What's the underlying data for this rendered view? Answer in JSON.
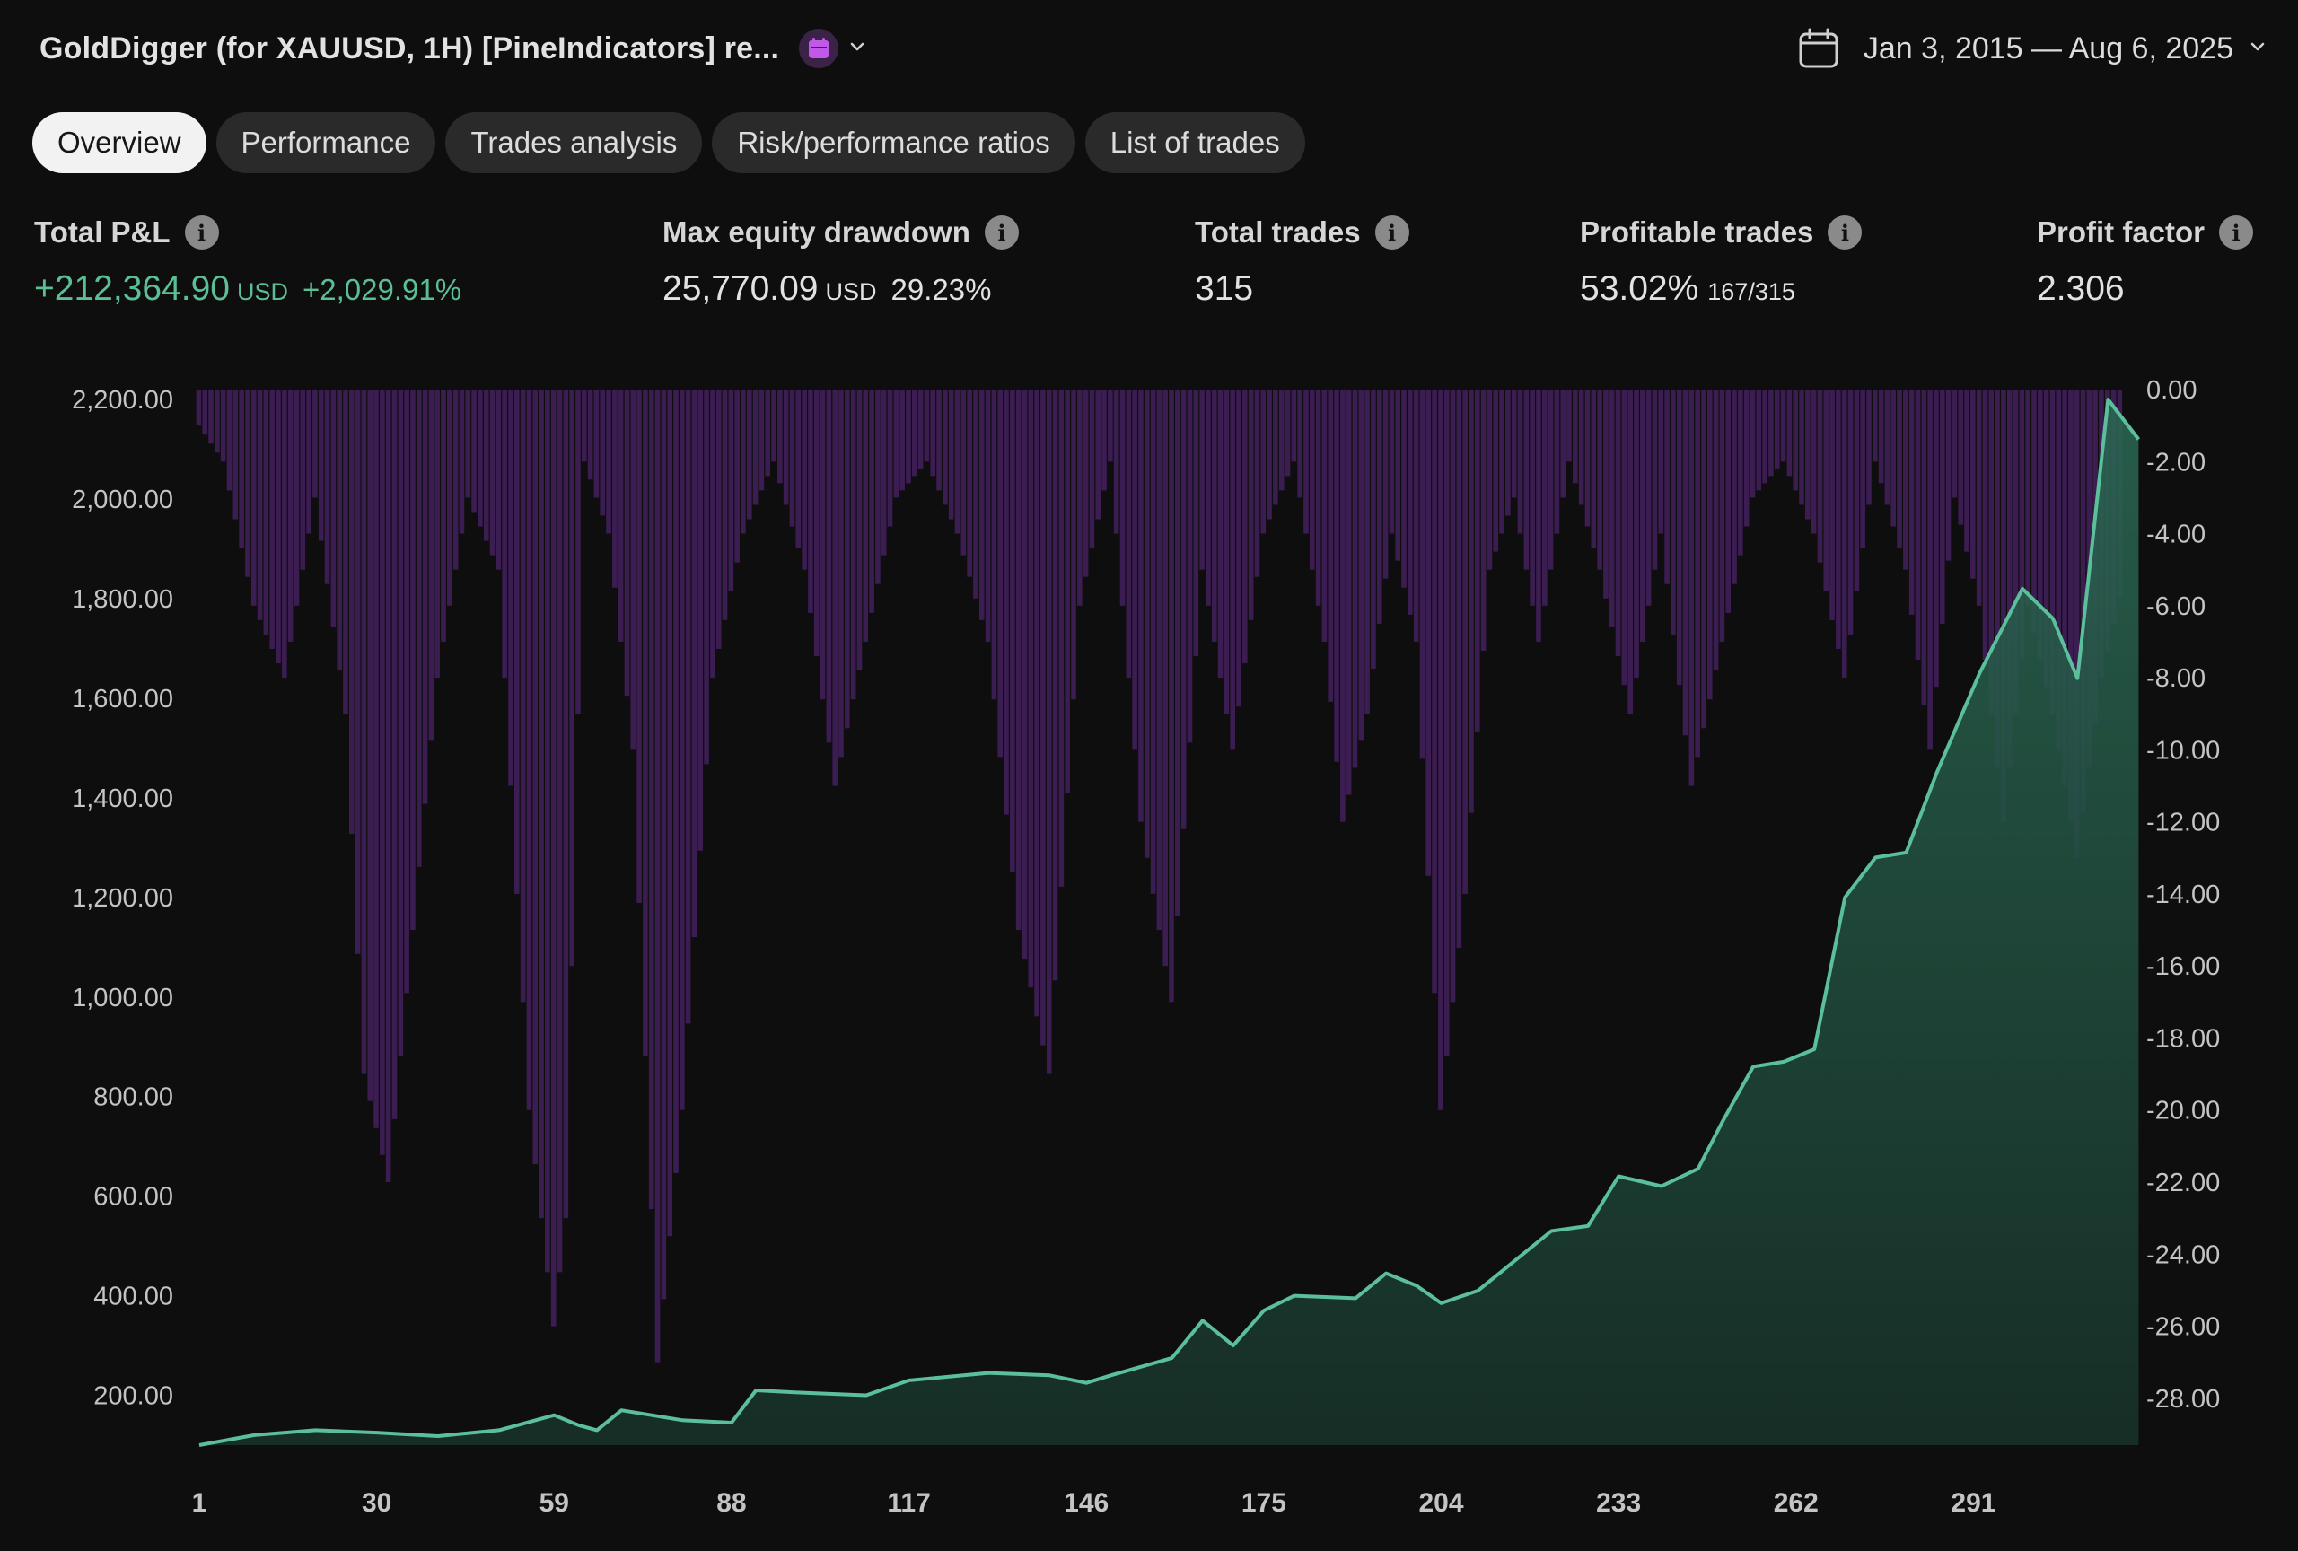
{
  "header": {
    "title": "GoldDigger (for XAUUSD, 1H) [PineIndicators] re...",
    "date_range": "Jan 3, 2015 — Aug 6, 2025"
  },
  "tabs": [
    {
      "label": "Overview",
      "active": true
    },
    {
      "label": "Performance"
    },
    {
      "label": "Trades analysis"
    },
    {
      "label": "Risk/performance ratios"
    },
    {
      "label": "List of trades"
    }
  ],
  "stats": {
    "total_pnl": {
      "label": "Total P&L",
      "value": "+212,364.90",
      "unit": "USD",
      "secondary": "+2,029.91%"
    },
    "max_drawdown": {
      "label": "Max equity drawdown",
      "value": "25,770.09",
      "unit": "USD",
      "secondary": "29.23%"
    },
    "total_trades": {
      "label": "Total trades",
      "value": "315"
    },
    "profitable_trades": {
      "label": "Profitable trades",
      "value": "53.02%",
      "secondary": "167/315"
    },
    "profit_factor": {
      "label": "Profit factor",
      "value": "2.306"
    }
  },
  "colors": {
    "accent_green": "#5bbf95",
    "drawdown_purple": "#3b1d52",
    "background": "#0e0e0e"
  },
  "chart_data": {
    "type": "area",
    "left_axis_ticks": [
      "2,200.00",
      "2,000.00",
      "1,800.00",
      "1,600.00",
      "1,400.00",
      "1,200.00",
      "1,000.00",
      "800.00",
      "600.00",
      "400.00",
      "200.00"
    ],
    "left_axis_values": [
      2200,
      2000,
      1800,
      1600,
      1400,
      1200,
      1000,
      800,
      600,
      400,
      200
    ],
    "right_axis_ticks": [
      "0.00",
      "-2.00",
      "-4.00",
      "-6.00",
      "-8.00",
      "-10.00",
      "-12.00",
      "-14.00",
      "-16.00",
      "-18.00",
      "-20.00",
      "-22.00",
      "-24.00",
      "-26.00",
      "-28.00"
    ],
    "right_axis_values": [
      0,
      -2,
      -4,
      -6,
      -8,
      -10,
      -12,
      -14,
      -16,
      -18,
      -20,
      -22,
      -24,
      -26,
      -28
    ],
    "x_ticks": [
      "1",
      "30",
      "59",
      "88",
      "117",
      "146",
      "175",
      "204",
      "233",
      "262",
      "291"
    ],
    "x_tick_values": [
      1,
      30,
      59,
      88,
      117,
      146,
      175,
      204,
      233,
      262,
      291
    ],
    "x_range": [
      1,
      315
    ],
    "y_range": [
      100,
      2220
    ],
    "drawdown_range": [
      -29.3,
      0
    ],
    "series": [
      {
        "kind": "equity",
        "points": [
          [
            1,
            100
          ],
          [
            10,
            120
          ],
          [
            20,
            130
          ],
          [
            30,
            125
          ],
          [
            40,
            118
          ],
          [
            50,
            130
          ],
          [
            59,
            160
          ],
          [
            63,
            140
          ],
          [
            66,
            130
          ],
          [
            70,
            170
          ],
          [
            80,
            150
          ],
          [
            88,
            145
          ],
          [
            92,
            210
          ],
          [
            100,
            205
          ],
          [
            110,
            200
          ],
          [
            117,
            230
          ],
          [
            130,
            245
          ],
          [
            140,
            240
          ],
          [
            146,
            225
          ],
          [
            150,
            240
          ],
          [
            160,
            275
          ],
          [
            165,
            350
          ],
          [
            170,
            300
          ],
          [
            175,
            370
          ],
          [
            180,
            400
          ],
          [
            190,
            395
          ],
          [
            195,
            445
          ],
          [
            200,
            420
          ],
          [
            204,
            385
          ],
          [
            210,
            410
          ],
          [
            215,
            460
          ],
          [
            222,
            530
          ],
          [
            228,
            540
          ],
          [
            233,
            640
          ],
          [
            240,
            620
          ],
          [
            246,
            655
          ],
          [
            250,
            750
          ],
          [
            255,
            860
          ],
          [
            260,
            870
          ],
          [
            265,
            895
          ],
          [
            270,
            1200
          ],
          [
            275,
            1280
          ],
          [
            280,
            1290
          ],
          [
            285,
            1450
          ],
          [
            292,
            1650
          ],
          [
            299,
            1820
          ],
          [
            304,
            1760
          ],
          [
            308,
            1640
          ],
          [
            313,
            2200
          ],
          [
            318,
            2120
          ]
        ]
      },
      {
        "kind": "drawdown_pct",
        "points": [
          [
            1,
            -1
          ],
          [
            5,
            -2
          ],
          [
            10,
            -6
          ],
          [
            15,
            -8
          ],
          [
            20,
            -3
          ],
          [
            25,
            -9
          ],
          [
            28,
            -19
          ],
          [
            32,
            -22
          ],
          [
            36,
            -15
          ],
          [
            40,
            -8
          ],
          [
            45,
            -3
          ],
          [
            50,
            -5
          ],
          [
            55,
            -20
          ],
          [
            59,
            -26
          ],
          [
            61,
            -23
          ],
          [
            64,
            -2
          ],
          [
            68,
            -4
          ],
          [
            72,
            -10
          ],
          [
            76,
            -27
          ],
          [
            80,
            -20
          ],
          [
            85,
            -8
          ],
          [
            90,
            -4
          ],
          [
            95,
            -2
          ],
          [
            100,
            -5
          ],
          [
            105,
            -11
          ],
          [
            110,
            -7
          ],
          [
            115,
            -3
          ],
          [
            120,
            -2
          ],
          [
            125,
            -4
          ],
          [
            130,
            -7
          ],
          [
            135,
            -15
          ],
          [
            140,
            -19
          ],
          [
            145,
            -6
          ],
          [
            150,
            -2
          ],
          [
            155,
            -12
          ],
          [
            160,
            -17
          ],
          [
            165,
            -5
          ],
          [
            170,
            -10
          ],
          [
            175,
            -4
          ],
          [
            180,
            -2
          ],
          [
            185,
            -7
          ],
          [
            188,
            -12
          ],
          [
            192,
            -9
          ],
          [
            196,
            -4
          ],
          [
            200,
            -7
          ],
          [
            204,
            -20
          ],
          [
            208,
            -14
          ],
          [
            212,
            -5
          ],
          [
            216,
            -3
          ],
          [
            220,
            -7
          ],
          [
            225,
            -2
          ],
          [
            230,
            -5
          ],
          [
            235,
            -9
          ],
          [
            240,
            -4
          ],
          [
            245,
            -11
          ],
          [
            250,
            -7
          ],
          [
            255,
            -3
          ],
          [
            260,
            -2
          ],
          [
            265,
            -4
          ],
          [
            270,
            -8
          ],
          [
            275,
            -2
          ],
          [
            280,
            -5
          ],
          [
            284,
            -10
          ],
          [
            288,
            -3
          ],
          [
            292,
            -6
          ],
          [
            296,
            -12
          ],
          [
            300,
            -6
          ],
          [
            304,
            -9
          ],
          [
            308,
            -13
          ],
          [
            312,
            -8
          ],
          [
            316,
            -5
          ],
          [
            318,
            -3
          ]
        ]
      }
    ]
  }
}
